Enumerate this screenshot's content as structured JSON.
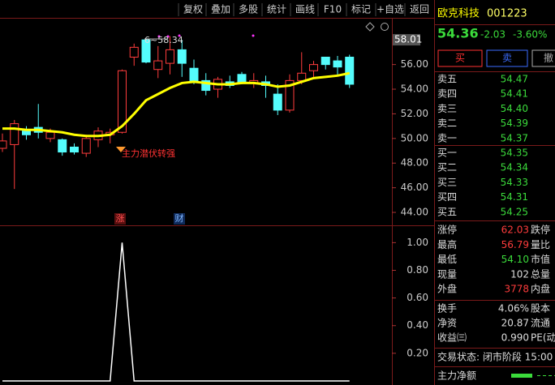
{
  "toolbar": [
    "复权",
    "叠加",
    "多股",
    "统计",
    "画线",
    "F10",
    "标记",
    "+自选",
    "返回"
  ],
  "price_chart": {
    "ylim": [
      42.95,
      59.66
    ],
    "yticks": [
      {
        "value": 44,
        "label": "44.00"
      },
      {
        "value": 46,
        "label": "46.00"
      },
      {
        "value": 48,
        "label": "48.00"
      },
      {
        "value": 50,
        "label": "50.00"
      },
      {
        "value": 52,
        "label": "52.00"
      },
      {
        "value": 54,
        "label": "54.00"
      },
      {
        "value": 56,
        "label": "56.00"
      }
    ],
    "last_tag": {
      "value": 58.01,
      "label": "58.01"
    },
    "high_label": "6~58.34",
    "annotation": "主力潜伏转强",
    "markers": [
      "涨",
      "财"
    ],
    "up_color": "#ff3c3c",
    "down_color": "#54fcfc",
    "ma_color": "#ffff00",
    "open": [
      49.2,
      49.5,
      50.6,
      50.9,
      50.0,
      49.9,
      49.3,
      48.8,
      49.9,
      50.3,
      50.5,
      56.6,
      58.0,
      55.6,
      56.1,
      57.2,
      55.7,
      54.7,
      54.0,
      54.6,
      55.2,
      54.5,
      54.6,
      53.6,
      52.3,
      54.7,
      55.5,
      56.6,
      56.3,
      56.6
    ],
    "close": [
      49.8,
      51.2,
      50.3,
      50.5,
      50.5,
      48.9,
      48.9,
      50.0,
      50.6,
      50.5,
      55.5,
      57.4,
      56.2,
      56.3,
      57.2,
      56.1,
      54.6,
      53.9,
      54.8,
      54.3,
      54.5,
      54.7,
      54.3,
      52.3,
      54.7,
      55.3,
      56.0,
      56.0,
      55.8,
      54.4
    ],
    "high": [
      50.4,
      51.5,
      51.0,
      52.8,
      50.8,
      50.0,
      49.6,
      50.3,
      50.9,
      50.8,
      55.6,
      57.7,
      58.0,
      57.5,
      58.3,
      58.0,
      56.4,
      55.3,
      55.0,
      55.1,
      55.4,
      55.3,
      55.1,
      54.4,
      55.2,
      57.0,
      56.3,
      56.6,
      56.7,
      56.8
    ],
    "low": [
      48.9,
      45.9,
      49.9,
      50.0,
      49.7,
      48.6,
      48.7,
      48.5,
      49.3,
      49.6,
      50.4,
      55.9,
      56.1,
      54.9,
      55.2,
      55.0,
      54.4,
      53.5,
      53.3,
      54.1,
      54.4,
      54.1,
      53.3,
      51.9,
      52.1,
      54.4,
      55.0,
      55.6,
      55.1,
      54.1
    ],
    "ma": [
      50.8,
      50.8,
      50.7,
      50.7,
      50.6,
      50.5,
      50.3,
      50.2,
      50.2,
      50.3,
      51.0,
      52.0,
      53.1,
      53.6,
      54.1,
      54.5,
      54.6,
      54.5,
      54.4,
      54.4,
      54.5,
      54.5,
      54.4,
      54.2,
      54.3,
      54.6,
      54.9,
      55.0,
      55.1,
      55.3
    ]
  },
  "indicator": {
    "ylim": [
      0,
      1.09
    ],
    "yticks": [
      {
        "value": 0.2,
        "label": "0.20"
      },
      {
        "value": 0.4,
        "label": "0.40"
      },
      {
        "value": 0.6,
        "label": "0.60"
      },
      {
        "value": 0.8,
        "label": "0.80"
      },
      {
        "value": 1,
        "label": "1.00"
      }
    ],
    "values": [
      0,
      0,
      0,
      0,
      0,
      0,
      0,
      0,
      0,
      0,
      1,
      0,
      0,
      0,
      0,
      0,
      0,
      0,
      0,
      0,
      0,
      0,
      0,
      0,
      0,
      0,
      0,
      0,
      0,
      0
    ]
  },
  "quote": {
    "name": "欧克科技",
    "code": "001223",
    "price": "54.36",
    "change": "-2.03",
    "change_pct": "-3.60%",
    "buttons": [
      "买",
      "卖",
      "撤"
    ],
    "asks": [
      [
        "卖五",
        "54.47"
      ],
      [
        "卖四",
        "54.41"
      ],
      [
        "卖三",
        "54.40"
      ],
      [
        "卖二",
        "54.39"
      ],
      [
        "卖一",
        "54.37"
      ]
    ],
    "bids": [
      [
        "买一",
        "54.35"
      ],
      [
        "买二",
        "54.34"
      ],
      [
        "买三",
        "54.33"
      ],
      [
        "买四",
        "54.31"
      ],
      [
        "买五",
        "54.25"
      ]
    ],
    "stats": [
      [
        "涨停",
        "62.03",
        "跌停"
      ],
      [
        "最高",
        "56.79",
        "量比"
      ],
      [
        "最低",
        "54.10",
        "市值"
      ],
      [
        "现量",
        "102",
        "总量"
      ],
      [
        "外盘",
        "3778",
        "内盘"
      ]
    ],
    "stats2": [
      [
        "换手",
        "4.06%",
        "股本"
      ],
      [
        "净资",
        "20.87",
        "流通"
      ],
      [
        "收益㈢",
        "0.990",
        "PE(动)"
      ]
    ],
    "status": "交易状态: 闭市阶段 15:00",
    "flow_label": "主力净额"
  }
}
